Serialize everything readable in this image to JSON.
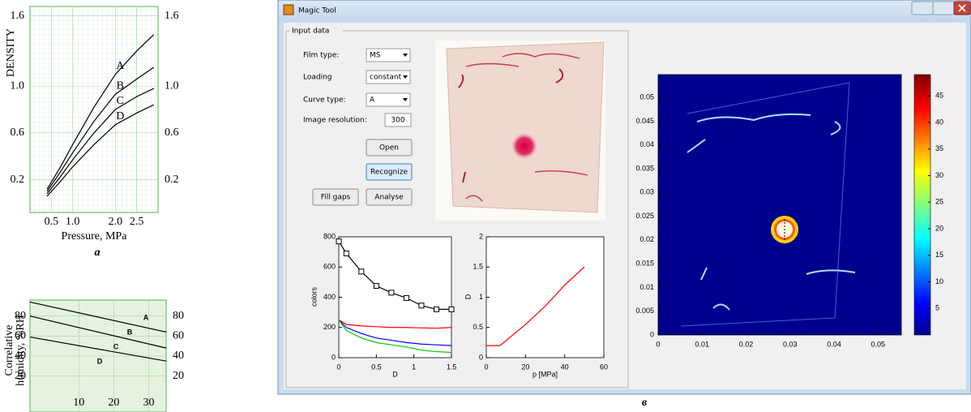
{
  "chart_data": [
    {
      "type": "line",
      "caption": "a",
      "xlabel": "Pressure, MPa",
      "ylabel": "DENSITY",
      "x": [
        0.4,
        0.7,
        1.0,
        1.5,
        2.0,
        2.5,
        2.9
      ],
      "series": [
        {
          "name": "A",
          "color": "#000000",
          "values": [
            0.12,
            0.3,
            0.5,
            0.82,
            1.1,
            1.3,
            1.44
          ]
        },
        {
          "name": "B",
          "color": "#000000",
          "values": [
            0.1,
            0.26,
            0.43,
            0.7,
            0.93,
            1.06,
            1.16
          ]
        },
        {
          "name": "C",
          "color": "#000000",
          "values": [
            0.08,
            0.22,
            0.37,
            0.6,
            0.8,
            0.91,
            0.98
          ]
        },
        {
          "name": "D",
          "color": "#000000",
          "values": [
            0.06,
            0.18,
            0.31,
            0.5,
            0.67,
            0.77,
            0.84
          ]
        }
      ],
      "xlim": [
        0,
        3
      ],
      "ylim": [
        -0.08,
        1.68
      ],
      "xticks": [
        0.5,
        {
          "value": 1,
          "label": "1.0"
        },
        {
          "value": 2,
          "label": "2.0"
        },
        2.5
      ],
      "yticks": [
        0.2,
        0.6,
        {
          "value": 1,
          "label": "1.0"
        },
        1.6
      ],
      "right_axis": true,
      "grid": true
    },
    {
      "type": "line",
      "ylabel": [
        "Correlative",
        "humidity, %RH"
      ],
      "x": [
        -4,
        35
      ],
      "series": [
        {
          "color": "#000000",
          "values": [
            94,
            64
          ]
        },
        {
          "color": "#000000",
          "values": [
            80,
            48
          ]
        },
        {
          "color": "#000000",
          "values": [
            59,
            35
          ]
        }
      ],
      "annotations": [
        "A",
        "B",
        "C",
        "D"
      ],
      "xlim": [
        -4,
        35
      ],
      "ylim": [
        -16,
        96
      ],
      "xticks": [
        10,
        20,
        30
      ],
      "yticks": [
        20,
        40,
        60,
        80
      ],
      "right_axis": true,
      "grid": true
    },
    {
      "type": "line",
      "xlabel": "D",
      "ylabel": "colors",
      "x": [
        0,
        0.1,
        0.3,
        0.5,
        0.7,
        0.9,
        1.1,
        1.3,
        1.5
      ],
      "series": [
        {
          "color": "#000000",
          "marker": "square",
          "values": [
            770,
            690,
            570,
            475,
            430,
            395,
            345,
            320,
            320
          ]
        },
        {
          "color": "#ff0000",
          "values": [
            250,
            220,
            210,
            205,
            200,
            200,
            197,
            195,
            200
          ]
        },
        {
          "color": "#0000ff",
          "values": [
            250,
            200,
            160,
            130,
            115,
            100,
            90,
            85,
            80
          ]
        },
        {
          "color": "#00cc00",
          "values": [
            250,
            180,
            130,
            100,
            85,
            70,
            50,
            40,
            35
          ]
        }
      ],
      "xlim": [
        0,
        1.5
      ],
      "ylim": [
        0,
        800
      ],
      "xticks": [
        0,
        0.5,
        1,
        1.5
      ],
      "yticks": [
        0,
        200,
        400,
        600,
        800
      ]
    },
    {
      "type": "line",
      "xlabel": "p [MPa]",
      "ylabel": "D",
      "x": [
        0,
        7,
        20,
        30,
        40,
        50
      ],
      "series": [
        {
          "color": "#ff0000",
          "values": [
            0.2,
            0.2,
            0.55,
            0.85,
            1.2,
            1.5
          ]
        }
      ],
      "xlim": [
        0,
        60
      ],
      "ylim": [
        0,
        2
      ],
      "xticks": [
        0,
        20,
        40,
        60
      ],
      "yticks": [
        0,
        0.5,
        1,
        1.5,
        2
      ]
    },
    {
      "type": "heatmap",
      "xlim": [
        0,
        0.0553
      ],
      "ylim": [
        0,
        0.0548
      ],
      "xticks": [
        0,
        0.01,
        0.02,
        0.03,
        0.04,
        0.05
      ],
      "yticks": [
        0,
        0.005,
        0.01,
        0.015,
        0.02,
        0.025,
        0.03,
        0.035,
        0.04,
        0.045,
        0.05
      ],
      "clim": [
        0,
        49
      ],
      "cticks": [
        5,
        10,
        15,
        20,
        25,
        30,
        35,
        40,
        45
      ]
    }
  ],
  "window": {
    "title": "Magic Tool",
    "group": "Input data",
    "caption": "в",
    "fields": [
      {
        "label": "Film type:",
        "value": "MS",
        "kind": "dropdown"
      },
      {
        "label": "Loading",
        "value": "constant",
        "kind": "dropdown"
      },
      {
        "label": "Curve type:",
        "value": "A",
        "kind": "dropdown"
      },
      {
        "label": "Image resolution:",
        "value": "300",
        "kind": "edit"
      }
    ],
    "buttons": [
      "Open",
      "Recognize",
      "Fill gaps",
      "Analyse"
    ]
  }
}
